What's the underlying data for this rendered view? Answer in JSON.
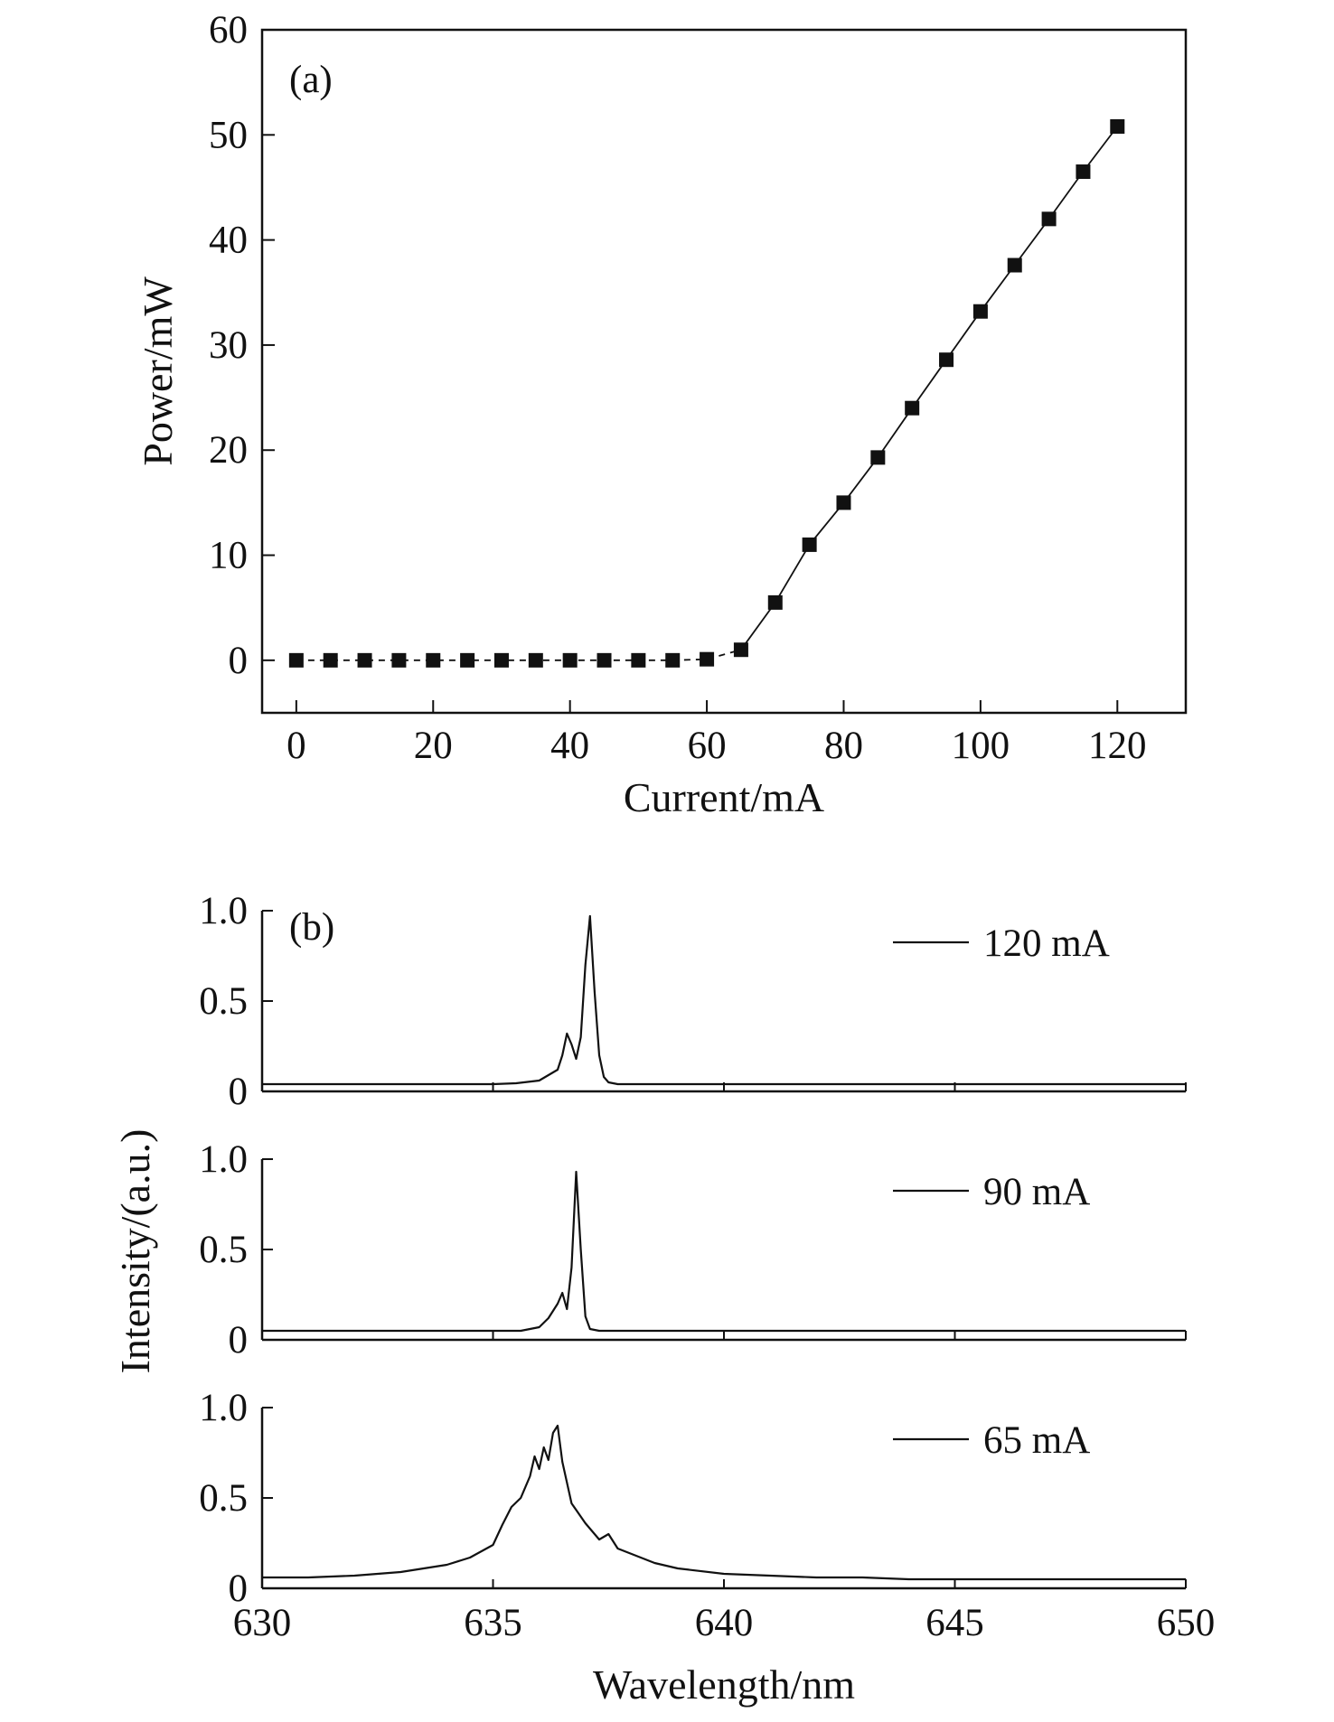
{
  "chart_data": [
    {
      "type": "line",
      "panel_label": "(a)",
      "xlabel": "Current/mA",
      "ylabel": "Power/mW",
      "xlim": [
        -5,
        130
      ],
      "ylim": [
        -5,
        60
      ],
      "xticks": [
        "0",
        "20",
        "40",
        "60",
        "80",
        "100",
        "120"
      ],
      "yticks": [
        "0",
        "10",
        "20",
        "30",
        "40",
        "50",
        "60"
      ],
      "marker": "square",
      "grid": false,
      "x": [
        0,
        5,
        10,
        15,
        20,
        25,
        30,
        35,
        40,
        45,
        50,
        55,
        60,
        65,
        70,
        75,
        80,
        85,
        90,
        95,
        100,
        105,
        110,
        115,
        120
      ],
      "y": [
        0,
        0,
        0,
        0,
        0,
        0,
        0,
        0,
        0,
        0,
        0,
        0,
        0.1,
        1.0,
        5.5,
        11.0,
        15.0,
        19.3,
        24.0,
        28.6,
        33.2,
        37.6,
        42.0,
        46.5,
        50.8
      ]
    },
    {
      "type": "line",
      "panel_label": "(b)",
      "xlabel": "Wavelength/nm",
      "ylabel": "Intensity/(a.u.)",
      "xlim": [
        630,
        650
      ],
      "ylim": [
        0,
        1.0
      ],
      "xticks": [
        "630",
        "635",
        "640",
        "645",
        "650"
      ],
      "yticks": [
        "0",
        "0.5",
        "1.0"
      ],
      "grid": false,
      "legend_position": "top-right",
      "series": [
        {
          "name": "120 mA",
          "x": [
            630,
            634.0,
            635.0,
            635.5,
            636.0,
            636.2,
            636.4,
            636.5,
            636.6,
            636.7,
            636.8,
            636.9,
            637.0,
            637.1,
            637.2,
            637.3,
            637.4,
            637.5,
            637.7,
            638.0,
            640,
            645,
            650
          ],
          "y": [
            0.04,
            0.04,
            0.04,
            0.045,
            0.06,
            0.09,
            0.12,
            0.2,
            0.32,
            0.26,
            0.18,
            0.3,
            0.7,
            0.97,
            0.55,
            0.2,
            0.08,
            0.05,
            0.04,
            0.04,
            0.04,
            0.04,
            0.04
          ]
        },
        {
          "name": "90 mA",
          "x": [
            630,
            634.0,
            635.0,
            635.6,
            636.0,
            636.2,
            636.4,
            636.5,
            636.6,
            636.7,
            636.8,
            636.9,
            637.0,
            637.1,
            637.3,
            638.0,
            640,
            645,
            650
          ],
          "y": [
            0.05,
            0.05,
            0.05,
            0.05,
            0.07,
            0.12,
            0.2,
            0.26,
            0.17,
            0.4,
            0.93,
            0.5,
            0.13,
            0.06,
            0.05,
            0.05,
            0.05,
            0.05,
            0.05
          ]
        },
        {
          "name": "65 mA",
          "x": [
            630,
            631,
            632,
            633,
            634,
            634.5,
            635.0,
            635.2,
            635.4,
            635.6,
            635.8,
            635.9,
            636.0,
            636.1,
            636.2,
            636.3,
            636.4,
            636.5,
            636.7,
            637.0,
            637.3,
            637.5,
            637.7,
            638.0,
            638.5,
            639.0,
            640.0,
            641,
            642,
            643,
            644,
            645,
            650
          ],
          "y": [
            0.06,
            0.06,
            0.07,
            0.09,
            0.13,
            0.17,
            0.24,
            0.35,
            0.45,
            0.5,
            0.62,
            0.73,
            0.66,
            0.78,
            0.71,
            0.86,
            0.9,
            0.7,
            0.47,
            0.36,
            0.27,
            0.3,
            0.22,
            0.19,
            0.14,
            0.11,
            0.08,
            0.07,
            0.06,
            0.06,
            0.05,
            0.05,
            0.05
          ]
        }
      ]
    }
  ]
}
